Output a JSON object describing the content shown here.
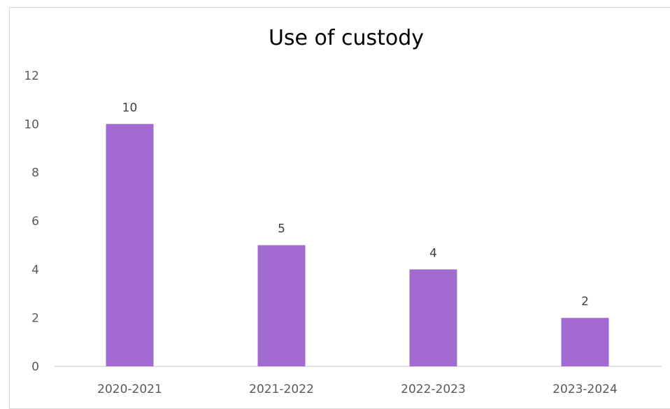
{
  "chart_data": {
    "type": "bar",
    "title": "Use of custody",
    "categories": [
      "2020-2021",
      "2021-2022",
      "2022-2023",
      "2023-2024"
    ],
    "values": [
      10,
      5,
      4,
      2
    ],
    "data_labels": [
      "10",
      "5",
      "4",
      "2"
    ],
    "ylim": [
      0,
      12
    ],
    "yticks": [
      0,
      2,
      4,
      6,
      8,
      10,
      12
    ],
    "ytick_labels": [
      "0",
      "2",
      "4",
      "6",
      "8",
      "10",
      "12"
    ],
    "xlabel": "",
    "ylabel": "",
    "grid": false,
    "legend": "none",
    "bar_color": "#a36bd1",
    "axis_color": "#d9d9d9"
  }
}
